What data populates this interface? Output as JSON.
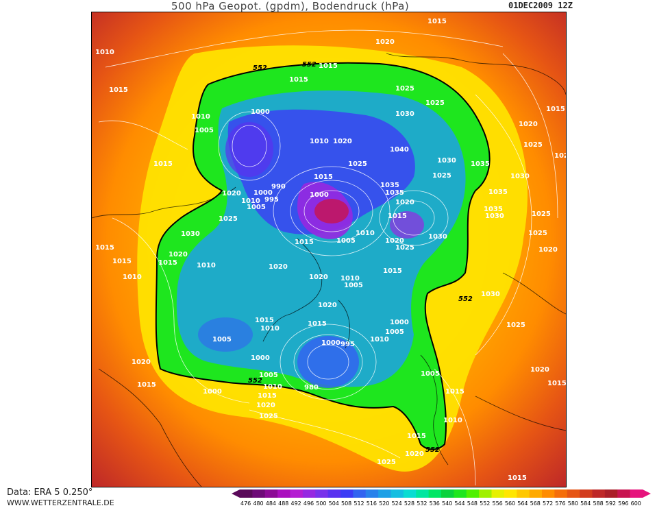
{
  "title": "500 hPa Geopot. (gpdm), Bodendruck (hPa)",
  "date": "01DEC2009 12Z",
  "footer": {
    "data": "Data: ERA 5 0.250°",
    "site": "WWW.WETTERZENTRALE.DE"
  },
  "colorscale": {
    "labels": [
      "476",
      "480",
      "484",
      "488",
      "492",
      "496",
      "500",
      "504",
      "508",
      "512",
      "516",
      "520",
      "524",
      "528",
      "532",
      "536",
      "540",
      "544",
      "548",
      "552",
      "556",
      "560",
      "564",
      "568",
      "572",
      "576",
      "580",
      "584",
      "588",
      "592",
      "596",
      "600"
    ],
    "colors": [
      "#5a0a5a",
      "#6e0a78",
      "#8c0a96",
      "#aa0fbe",
      "#b41ed2",
      "#9628e1",
      "#7832eb",
      "#5a32f0",
      "#3c3cf5",
      "#3264f0",
      "#2882eb",
      "#1ea0e6",
      "#14bee1",
      "#0adcd2",
      "#00e6a0",
      "#00e664",
      "#0ad23c",
      "#1ee61e",
      "#50f000",
      "#a0f000",
      "#e6f000",
      "#ffe600",
      "#ffc800",
      "#ffaa00",
      "#ff8c00",
      "#f56e0a",
      "#e65514",
      "#d23c1e",
      "#be2828",
      "#aa1e28",
      "#c81450",
      "#e6147d"
    ]
  },
  "map_labels": {
    "contour_552": "552",
    "isobars": [
      "1015",
      "1010",
      "1015",
      "1020",
      "1025",
      "1030",
      "1035",
      "1000",
      "1005",
      "990",
      "995",
      "980",
      "1040"
    ]
  }
}
